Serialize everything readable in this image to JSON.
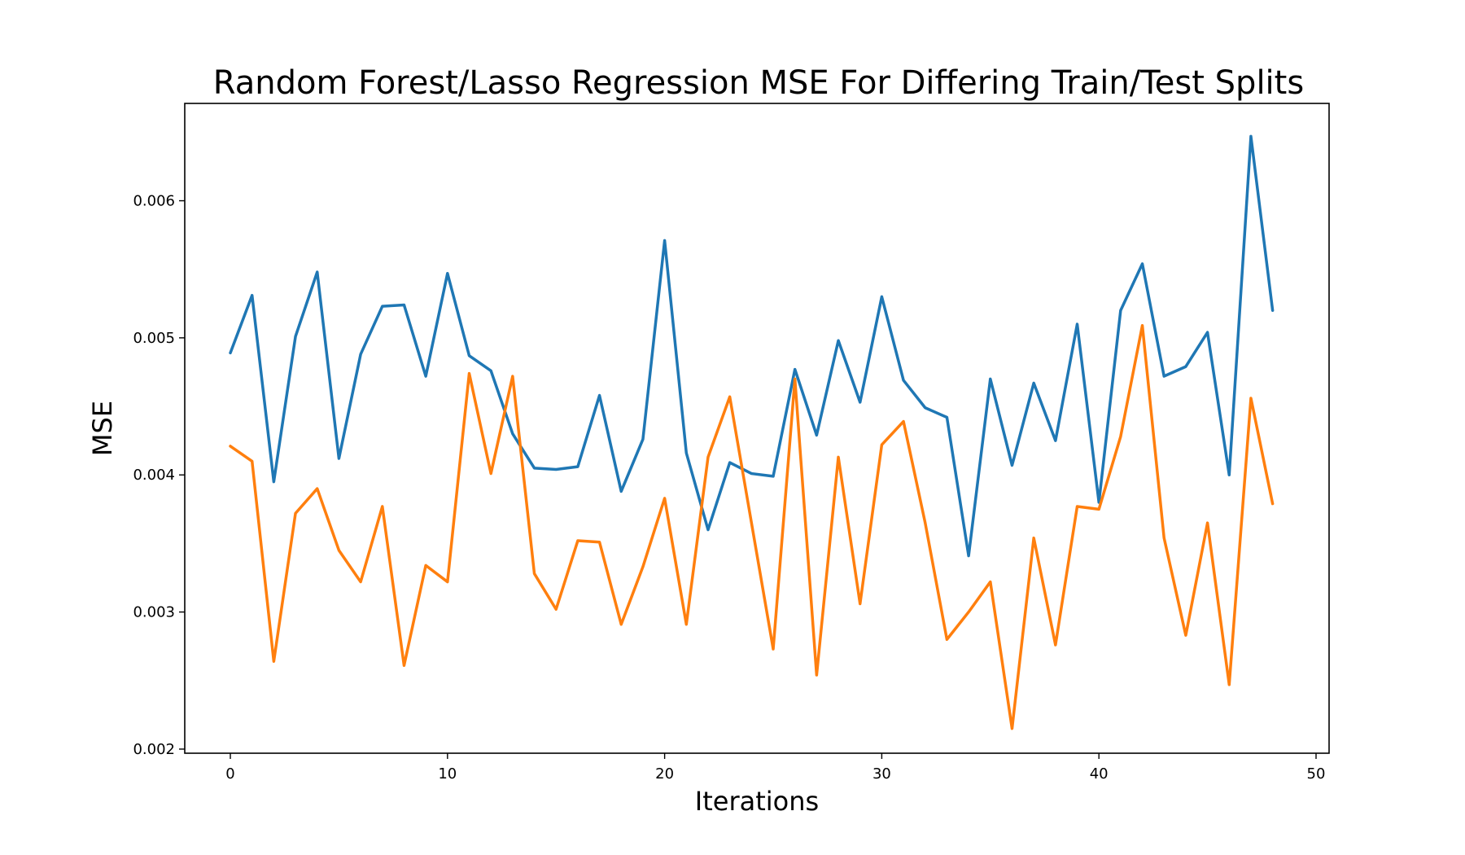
{
  "chart_data": {
    "type": "line",
    "title": "Random Forest/Lasso Regression MSE For Differing Train/Test Splits",
    "xlabel": "Iterations",
    "ylabel": "MSE",
    "xlim": [
      -2.1,
      50.6
    ],
    "ylim": [
      0.00197,
      0.00671
    ],
    "xticks": [
      0,
      10,
      20,
      30,
      40,
      50
    ],
    "xtick_labels": [
      "0",
      "10",
      "20",
      "30",
      "40",
      "50"
    ],
    "yticks": [
      0.002,
      0.003,
      0.004,
      0.005,
      0.006
    ],
    "ytick_labels": [
      "0.002",
      "0.003",
      "0.004",
      "0.005",
      "0.006"
    ],
    "grid": false,
    "legend": "none",
    "x": [
      0,
      1,
      2,
      3,
      4,
      5,
      6,
      7,
      8,
      9,
      10,
      11,
      12,
      13,
      14,
      15,
      16,
      17,
      18,
      19,
      20,
      21,
      22,
      23,
      24,
      25,
      26,
      27,
      28,
      29,
      30,
      31,
      32,
      33,
      34,
      35,
      36,
      37,
      38,
      39,
      40,
      41,
      42,
      43,
      44,
      45,
      46,
      47,
      48
    ],
    "series": [
      {
        "color": "#1f77b4",
        "values": [
          0.00489,
          0.00531,
          0.00395,
          0.00501,
          0.00548,
          0.00412,
          0.00488,
          0.00523,
          0.00524,
          0.00472,
          0.00547,
          0.00487,
          0.00476,
          0.0043,
          0.00405,
          0.00404,
          0.00406,
          0.00458,
          0.00388,
          0.00426,
          0.00571,
          0.00416,
          0.0036,
          0.00409,
          0.00401,
          0.00399,
          0.00477,
          0.00429,
          0.00498,
          0.00453,
          0.0053,
          0.00469,
          0.00449,
          0.00442,
          0.00341,
          0.0047,
          0.00407,
          0.00467,
          0.00425,
          0.0051,
          0.0038,
          0.0052,
          0.00554,
          0.00472,
          0.00479,
          0.00504,
          0.004,
          0.00647,
          0.0052
        ]
      },
      {
        "color": "#ff7f0e",
        "values": [
          0.00421,
          0.0041,
          0.00264,
          0.00372,
          0.0039,
          0.00345,
          0.00322,
          0.00377,
          0.00261,
          0.00334,
          0.00322,
          0.00474,
          0.00401,
          0.00472,
          0.00328,
          0.00302,
          0.00352,
          0.00351,
          0.00291,
          0.00333,
          0.00383,
          0.00291,
          0.00413,
          0.00457,
          0.00365,
          0.00273,
          0.0047,
          0.00254,
          0.00413,
          0.00306,
          0.00422,
          0.00439,
          0.00365,
          0.0028,
          0.003,
          0.00322,
          0.00215,
          0.00354,
          0.00276,
          0.00377,
          0.00375,
          0.00428,
          0.00509,
          0.00354,
          0.00283,
          0.00365,
          0.00247,
          0.00456,
          0.00379
        ]
      }
    ]
  }
}
